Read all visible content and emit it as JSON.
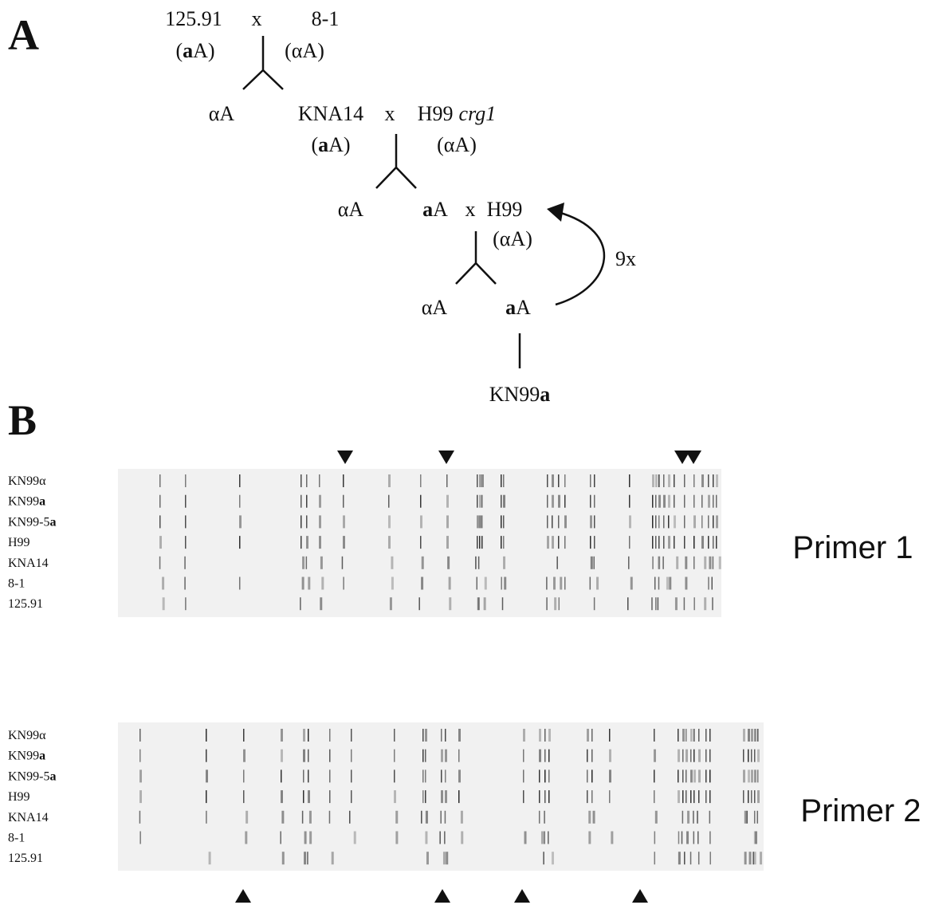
{
  "panel_a": {
    "label": "A",
    "cross_1": {
      "parent_1": "125.91",
      "cross_sign": "x",
      "parent_2": "8-1",
      "mating_1": {
        "open": "(",
        "bold": "a",
        "close": "A)"
      },
      "mating_2": "(αA)"
    },
    "progeny_1": {
      "alpha": "αA"
    },
    "cross_2": {
      "parent_1": "KNA14",
      "cross_sign": "x",
      "parent_2": "H99",
      "parent_2_italic": "crg1",
      "mating_1": {
        "open": "(",
        "bold": "a",
        "close": "A)"
      },
      "mating_2": "(αA)"
    },
    "cross_3": {
      "progeny_alpha": "αA",
      "progeny_a": {
        "bold": "a",
        "rest": "A"
      },
      "cross_sign": "x",
      "parent_2": "H99",
      "mating_2": "(αA)",
      "repeat": "9x"
    },
    "cross_4": {
      "progeny_alpha": "αA",
      "progeny_a": {
        "bold": "a",
        "rest": "A"
      }
    },
    "final_strain": {
      "text": "KN99",
      "bold": "a"
    }
  },
  "panel_b": {
    "label": "B",
    "gels": [
      {
        "primer": "Primer 1",
        "lanes": [
          {
            "text": "KN99α"
          },
          {
            "text": "KN99",
            "bold": "a"
          },
          {
            "text": "KN99-5",
            "bold": "a"
          },
          {
            "text": "H99"
          },
          {
            "text": "KNA14"
          },
          {
            "text": "8-1"
          },
          {
            "text": "125.91"
          }
        ]
      },
      {
        "primer": "Primer 2",
        "lanes": [
          {
            "text": "KN99α"
          },
          {
            "text": "KN99",
            "bold": "a"
          },
          {
            "text": "KN99-5",
            "bold": "a"
          },
          {
            "text": "H99"
          },
          {
            "text": "KNA14"
          },
          {
            "text": "8-1"
          },
          {
            "text": "125.91"
          }
        ]
      }
    ]
  }
}
